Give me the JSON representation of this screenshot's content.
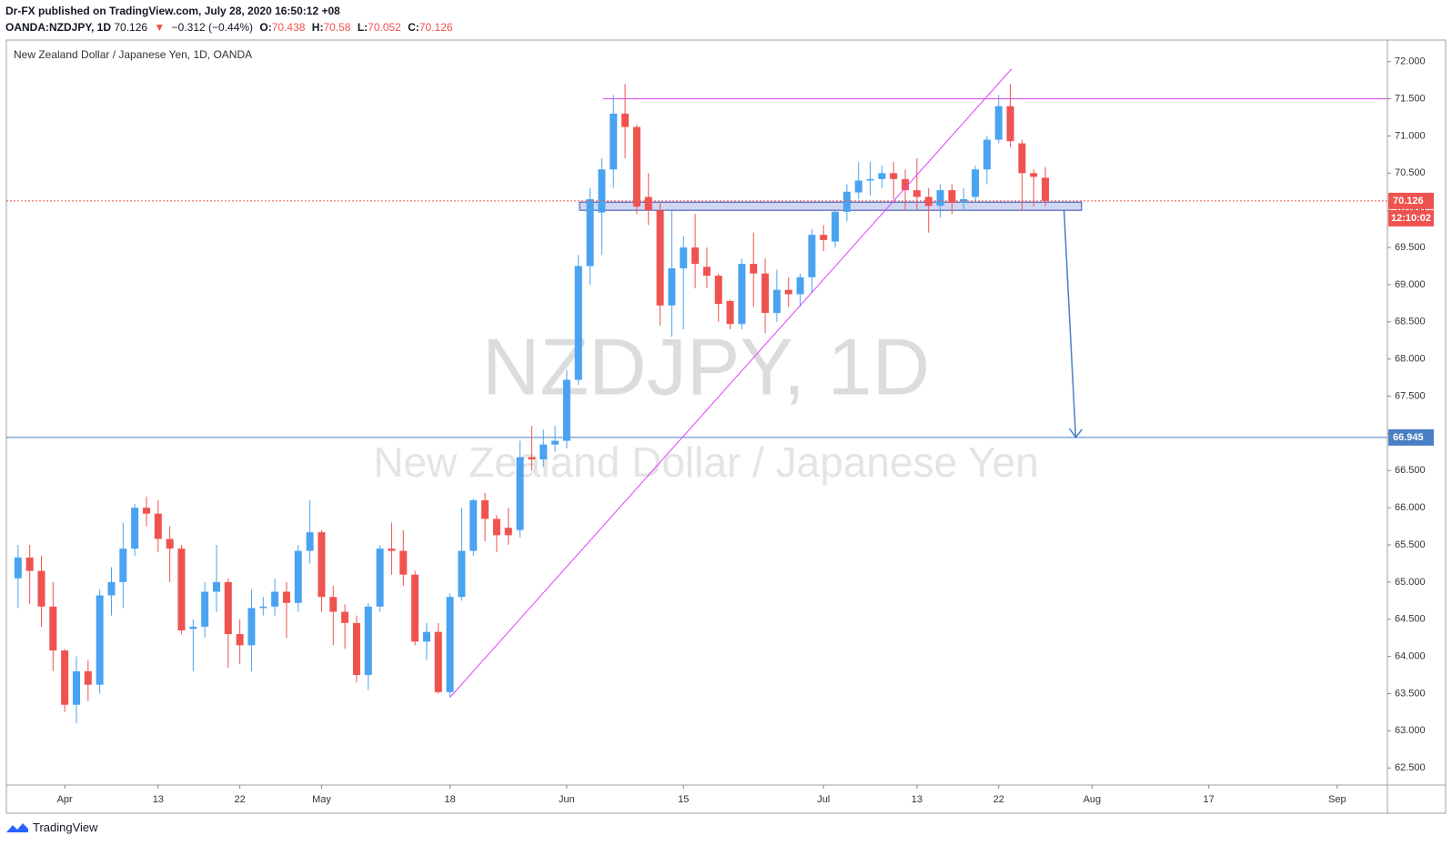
{
  "header": {
    "line1": "Dr-FX published on TradingView.com, July 28, 2020 16:50:12 +08",
    "symbol": "OANDA:NZDJPY, 1D",
    "direction": "▼",
    "change": "−0.312 (−0.44%)",
    "ohlc_labels": [
      "O:",
      "H:",
      "L:",
      "C:"
    ]
  },
  "footer": {
    "brand": "TradingView"
  },
  "chart_data": {
    "type": "candlestick",
    "title": "NZDJPY, 1D",
    "subtitle": "New Zealand Dollar / Japanese Yen",
    "label": "New Zealand Dollar / Japanese Yen, 1D, OANDA",
    "countdown": "12:10:02",
    "x": [
      -4,
      -3,
      -2,
      -1,
      0,
      1,
      2,
      3,
      4,
      5,
      6,
      7,
      8,
      9,
      10,
      11,
      12,
      13,
      14,
      15,
      16,
      17,
      18,
      19,
      20,
      21,
      22,
      23,
      24,
      25,
      26,
      27,
      28,
      29,
      30,
      31,
      32,
      33,
      34,
      35,
      36,
      37,
      38,
      39,
      40,
      41,
      42,
      43,
      44,
      45,
      46,
      47,
      48,
      49,
      50,
      51,
      52,
      53,
      54,
      55,
      56,
      57,
      58,
      59,
      60,
      61,
      62,
      63,
      64,
      65,
      66,
      67,
      68,
      69,
      70,
      71,
      72,
      73,
      74,
      75,
      76,
      77,
      78,
      79,
      80,
      81,
      82,
      83,
      84
    ],
    "series": [
      {
        "up_color": "#4aa3f0",
        "down_color": "#ef5350",
        "open": [
          65.05,
          65.33,
          65.15,
          64.67,
          64.08,
          63.35,
          63.8,
          63.62,
          64.82,
          65.0,
          65.45,
          66.0,
          65.92,
          65.58,
          65.45,
          64.37,
          64.4,
          64.87,
          65.0,
          64.3,
          64.15,
          64.65,
          64.67,
          64.87,
          64.72,
          65.42,
          65.67,
          64.8,
          64.6,
          64.45,
          63.75,
          64.67,
          65.45,
          65.42,
          65.1,
          64.2,
          64.33,
          63.52,
          64.8,
          65.42,
          66.1,
          65.85,
          65.73,
          65.7,
          66.68,
          66.65,
          66.85,
          66.9,
          67.72,
          69.25,
          69.97,
          70.55,
          71.3,
          71.12,
          70.18,
          70.0,
          68.72,
          69.22,
          69.5,
          69.24,
          69.12,
          68.78,
          68.47,
          69.28,
          69.15,
          68.62,
          68.93,
          68.87,
          69.1,
          69.67,
          69.58,
          69.98,
          70.24,
          70.4,
          70.42,
          70.5,
          70.42,
          70.27,
          70.18,
          70.06,
          70.27,
          70.1,
          70.18,
          70.55,
          70.95,
          71.4,
          70.9,
          70.5,
          70.438
        ],
        "high": [
          65.5,
          65.5,
          65.35,
          65.0,
          64.1,
          64.0,
          63.95,
          64.9,
          65.2,
          65.8,
          66.05,
          66.15,
          66.1,
          65.75,
          65.5,
          64.5,
          65.0,
          65.5,
          65.05,
          64.5,
          64.9,
          64.8,
          65.05,
          65.0,
          65.5,
          66.1,
          65.7,
          64.95,
          64.7,
          64.55,
          64.72,
          65.5,
          65.8,
          65.7,
          65.15,
          64.45,
          64.45,
          64.85,
          66.0,
          66.12,
          66.2,
          65.9,
          66.0,
          66.9,
          67.1,
          67.05,
          67.1,
          67.85,
          69.4,
          70.3,
          70.7,
          71.55,
          71.7,
          71.15,
          70.5,
          70.1,
          70.0,
          69.65,
          69.95,
          69.5,
          69.15,
          68.8,
          69.35,
          69.7,
          69.35,
          69.2,
          69.1,
          69.15,
          69.75,
          69.8,
          70.0,
          70.35,
          70.65,
          70.65,
          70.6,
          70.65,
          70.55,
          70.7,
          70.3,
          70.35,
          70.35,
          70.3,
          70.6,
          71.0,
          71.55,
          71.7,
          70.95,
          70.55,
          70.58
        ],
        "low": [
          64.65,
          64.7,
          64.4,
          63.8,
          63.25,
          63.1,
          63.4,
          63.5,
          64.55,
          64.65,
          65.35,
          65.75,
          65.4,
          65.0,
          64.3,
          63.8,
          64.25,
          64.6,
          63.85,
          63.9,
          63.8,
          64.55,
          64.55,
          64.25,
          64.6,
          65.25,
          64.6,
          64.15,
          64.1,
          63.65,
          63.55,
          64.6,
          65.1,
          64.95,
          64.15,
          63.95,
          63.5,
          63.45,
          64.75,
          65.35,
          65.55,
          65.4,
          65.5,
          65.6,
          66.5,
          66.55,
          66.75,
          66.8,
          67.65,
          69.0,
          69.4,
          70.3,
          70.7,
          69.95,
          69.8,
          68.45,
          68.3,
          68.4,
          68.95,
          68.95,
          68.5,
          68.4,
          68.4,
          68.7,
          68.35,
          68.5,
          68.7,
          68.7,
          68.9,
          69.45,
          69.5,
          69.85,
          70.15,
          70.2,
          70.3,
          70.15,
          70.0,
          70.0,
          69.7,
          69.9,
          69.95,
          70.0,
          70.1,
          70.35,
          70.9,
          70.85,
          70.0,
          70.05,
          70.052
        ],
        "close": [
          65.33,
          65.15,
          64.67,
          64.08,
          63.35,
          63.8,
          63.62,
          64.82,
          65.0,
          65.45,
          66.0,
          65.92,
          65.58,
          65.45,
          64.35,
          64.4,
          64.87,
          65.0,
          64.3,
          64.15,
          64.65,
          64.67,
          64.87,
          64.72,
          65.42,
          65.67,
          64.8,
          64.6,
          64.45,
          63.75,
          64.67,
          65.45,
          65.42,
          65.1,
          64.2,
          64.33,
          63.52,
          64.8,
          65.42,
          66.1,
          65.85,
          65.63,
          65.63,
          66.68,
          66.65,
          66.85,
          66.9,
          67.72,
          69.25,
          70.15,
          70.55,
          71.3,
          71.12,
          70.05,
          70.0,
          68.72,
          69.22,
          69.5,
          69.28,
          69.12,
          68.74,
          68.47,
          69.28,
          69.15,
          68.62,
          68.93,
          68.87,
          69.1,
          69.67,
          69.6,
          69.98,
          70.25,
          70.4,
          70.42,
          70.5,
          70.42,
          70.27,
          70.18,
          70.06,
          70.27,
          70.1,
          70.15,
          70.55,
          70.95,
          71.4,
          70.93,
          70.5,
          70.45,
          70.126
        ]
      }
    ],
    "xlim": [
      -5,
      113.3
    ],
    "xticks": [
      {
        "value": 0,
        "label": "Apr"
      },
      {
        "value": 8,
        "label": "13"
      },
      {
        "value": 15,
        "label": "22"
      },
      {
        "value": 22,
        "label": "May"
      },
      {
        "value": 33,
        "label": "18"
      },
      {
        "value": 43,
        "label": "Jun"
      },
      {
        "value": 53,
        "label": "15"
      },
      {
        "value": 65,
        "label": "Jul"
      },
      {
        "value": 73,
        "label": "13"
      },
      {
        "value": 80,
        "label": "22"
      },
      {
        "value": 88,
        "label": "Aug"
      },
      {
        "value": 98,
        "label": "17"
      },
      {
        "value": 109,
        "label": "Sep"
      }
    ],
    "ylim": [
      62.27,
      72.29
    ],
    "yticks": [
      {
        "value": 62.5,
        "label": "62.500"
      },
      {
        "value": 63,
        "label": "63.000"
      },
      {
        "value": 63.5,
        "label": "63.500"
      },
      {
        "value": 64,
        "label": "64.000"
      },
      {
        "value": 64.5,
        "label": "64.500"
      },
      {
        "value": 65,
        "label": "65.000"
      },
      {
        "value": 65.5,
        "label": "65.500"
      },
      {
        "value": 66,
        "label": "66.000"
      },
      {
        "value": 66.5,
        "label": "66.500"
      },
      {
        "value": 67,
        "label": "67.000"
      },
      {
        "value": 67.5,
        "label": "67.500"
      },
      {
        "value": 68,
        "label": "68.000"
      },
      {
        "value": 68.5,
        "label": "68.500"
      },
      {
        "value": 69,
        "label": "69.000"
      },
      {
        "value": 69.5,
        "label": "69.500"
      },
      {
        "value": 70,
        "label": "70.000"
      },
      {
        "value": 70.5,
        "label": "70.500"
      },
      {
        "value": 71,
        "label": "71.000"
      },
      {
        "value": 71.5,
        "label": "71.500"
      },
      {
        "value": 72,
        "label": "72.000"
      }
    ],
    "grid": false,
    "drawings": {
      "resistance": {
        "price": 71.5,
        "from_x": 46.1,
        "color": "#e040fb"
      },
      "trendline": {
        "points": [
          [
            33,
            63.45
          ],
          [
            81.1,
            71.9
          ]
        ],
        "color": "#e040fb"
      },
      "zone": {
        "x": [
          44.1,
          87.1
        ],
        "low": 70.0,
        "high": 70.11,
        "color": "#3949ab"
      },
      "target": {
        "price": 66.945,
        "arrow_from": [
          85.6,
          70.0
        ],
        "arrow_to_x": 86.6,
        "color": "#4a7fc4"
      }
    }
  }
}
